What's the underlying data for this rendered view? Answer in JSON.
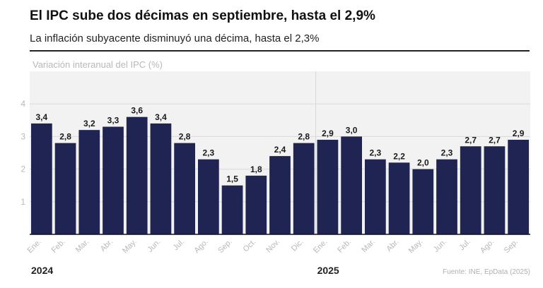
{
  "header": {
    "title": "El IPC sube dos décimas en septiembre, hasta el 2,9%",
    "subtitle": "La inflación subyacente disminuyó una décima, hasta el 2,3%"
  },
  "footer": {
    "source": "Fuente: INE, EpData (2025)"
  },
  "chart_data": {
    "type": "bar",
    "ylabel": "Variación interanual del IPC (%)",
    "categories": [
      "Ene.",
      "Feb.",
      "Mar.",
      "Abr.",
      "May.",
      "Jun.",
      "Jul.",
      "Ago.",
      "Sep.",
      "Oct.",
      "Nov.",
      "Dic.",
      "Ene.",
      "Feb.",
      "Mar.",
      "Abr.",
      "May.",
      "Jun.",
      "Jul.",
      "Ago.",
      "Sep."
    ],
    "values": [
      3.4,
      2.8,
      3.2,
      3.3,
      3.6,
      3.4,
      2.8,
      2.3,
      1.5,
      1.8,
      2.4,
      2.8,
      2.9,
      3.0,
      2.3,
      2.2,
      2.0,
      2.3,
      2.7,
      2.7,
      2.9
    ],
    "value_labels": [
      "3,4",
      "2,8",
      "3,2",
      "3,3",
      "3,6",
      "3,4",
      "2,8",
      "2,3",
      "1,5",
      "1,8",
      "2,4",
      "2,8",
      "2,9",
      "3,0",
      "2,3",
      "2,2",
      "2,0",
      "2,3",
      "2,7",
      "2,7",
      "2,9"
    ],
    "yticks": [
      1,
      2,
      3,
      4
    ],
    "ylim": [
      0,
      5
    ],
    "years": [
      {
        "label": "2024",
        "start_index": 0
      },
      {
        "label": "2025",
        "start_index": 12
      }
    ],
    "grid": true,
    "legend": "none",
    "colors": {
      "bar": "#1f2452",
      "plot_background": "#f2f2f2",
      "grid": "#d9d9d9",
      "muted_text": "#b8b8b8"
    }
  }
}
